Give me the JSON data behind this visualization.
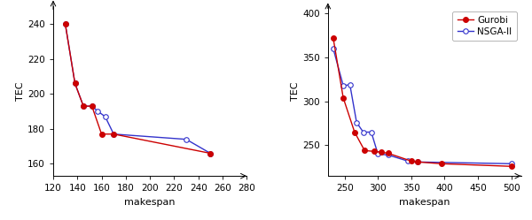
{
  "left": {
    "gurobi_x": [
      130,
      138,
      145,
      152,
      160,
      170,
      250
    ],
    "gurobi_y": [
      240,
      206,
      193,
      193,
      177,
      177,
      166
    ],
    "nsga2_x": [
      130,
      138,
      145,
      152,
      157,
      163,
      170,
      230,
      250
    ],
    "nsga2_y": [
      240,
      206,
      193,
      193,
      190,
      187,
      177,
      174,
      166
    ],
    "xlim": [
      120,
      280
    ],
    "ylim": [
      153,
      250
    ],
    "xticks": [
      120,
      140,
      160,
      180,
      200,
      220,
      240,
      260,
      280
    ],
    "yticks": [
      160,
      180,
      200,
      220,
      240
    ],
    "xlabel": "makespan",
    "ylabel": "TEC"
  },
  "right": {
    "gurobi_x": [
      233,
      248,
      265,
      280,
      295,
      305,
      315,
      350,
      360,
      395,
      500
    ],
    "gurobi_y": [
      372,
      304,
      265,
      244,
      243,
      242,
      241,
      232,
      231,
      229,
      226
    ],
    "nsga2_x": [
      233,
      248,
      258,
      268,
      278,
      290,
      300,
      315,
      345,
      360,
      500
    ],
    "nsga2_y": [
      360,
      318,
      319,
      276,
      265,
      265,
      240,
      239,
      232,
      231,
      229
    ],
    "xlim": [
      225,
      515
    ],
    "ylim": [
      215,
      408
    ],
    "xticks": [
      250,
      300,
      350,
      400,
      450,
      500
    ],
    "yticks": [
      250,
      300,
      350,
      400
    ],
    "xlabel": "makespan",
    "ylabel": "TEC"
  },
  "gurobi_color": "#cc0000",
  "nsga2_color": "#3333cc",
  "marker_size": 4,
  "line_width": 1.0,
  "gurobi_label": "Gurobi",
  "nsga2_label": "NSGA-II"
}
